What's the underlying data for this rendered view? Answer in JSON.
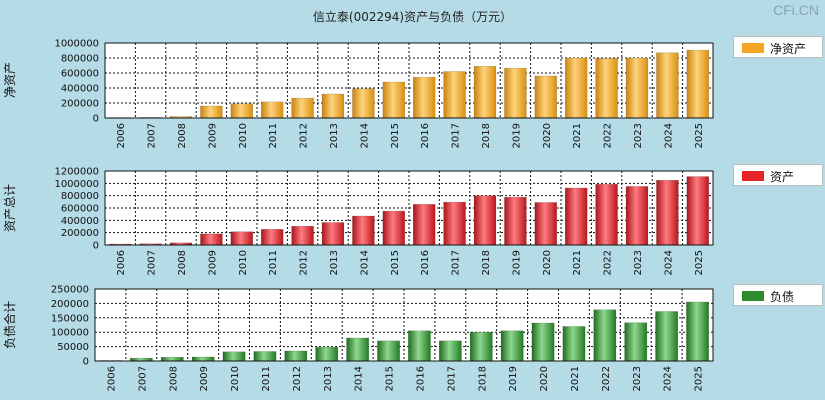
{
  "title": "信立泰(002294)资产与负债（万元）",
  "brand": "CFi.CN",
  "chart_data": [
    {
      "type": "bar",
      "ylabel": "净资产",
      "legend": "净资产",
      "color": "#f5a623",
      "categories": [
        "2006",
        "2007",
        "2008",
        "2009",
        "2010",
        "2011",
        "2012",
        "2013",
        "2014",
        "2015",
        "2016",
        "2017",
        "2018",
        "2019",
        "2020",
        "2021",
        "2022",
        "2023",
        "2024",
        "2025"
      ],
      "values": [
        5000,
        8000,
        20000,
        160000,
        190000,
        215000,
        265000,
        320000,
        390000,
        480000,
        545000,
        620000,
        690000,
        665000,
        560000,
        800000,
        795000,
        800000,
        870000,
        905000
      ],
      "ylim": [
        0,
        1000000
      ],
      "yticks": [
        "0",
        "200000",
        "400000",
        "600000",
        "800000",
        "1000000"
      ],
      "grid": true
    },
    {
      "type": "bar",
      "ylabel": "资产总计",
      "legend": "资产",
      "color": "#e8242b",
      "categories": [
        "2006",
        "2007",
        "2008",
        "2009",
        "2010",
        "2011",
        "2012",
        "2013",
        "2014",
        "2015",
        "2016",
        "2017",
        "2018",
        "2019",
        "2020",
        "2021",
        "2022",
        "2023",
        "2024",
        "2025"
      ],
      "values": [
        15000,
        20000,
        35000,
        180000,
        215000,
        255000,
        305000,
        365000,
        470000,
        550000,
        660000,
        695000,
        800000,
        775000,
        690000,
        925000,
        985000,
        950000,
        1050000,
        1110000
      ],
      "ylim": [
        0,
        1200000
      ],
      "yticks": [
        "0",
        "200000",
        "400000",
        "600000",
        "800000",
        "1000000",
        "1200000"
      ],
      "grid": true
    },
    {
      "type": "bar",
      "ylabel": "负债合计",
      "legend": "负债",
      "color": "#2e8b2e",
      "categories": [
        "2006",
        "2007",
        "2008",
        "2009",
        "2010",
        "2011",
        "2012",
        "2013",
        "2014",
        "2015",
        "2016",
        "2017",
        "2018",
        "2019",
        "2020",
        "2021",
        "2022",
        "2023",
        "2024",
        "2025"
      ],
      "values": [
        2000,
        10000,
        13000,
        14000,
        32000,
        33000,
        35000,
        48000,
        80000,
        70000,
        105000,
        70000,
        100000,
        105000,
        132000,
        120000,
        178000,
        133000,
        172000,
        205000
      ],
      "ylim": [
        0,
        250000
      ],
      "yticks": [
        "0",
        "50000",
        "100000",
        "150000",
        "200000",
        "250000"
      ],
      "grid": true
    }
  ]
}
